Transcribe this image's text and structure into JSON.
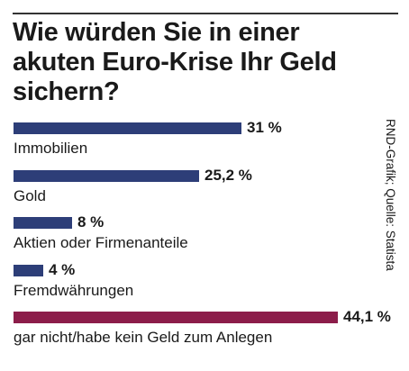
{
  "chart_data": {
    "type": "bar",
    "orientation": "horizontal",
    "title": "Wie würden Sie in einer akuten Euro-Krise Ihr Geld sichern?",
    "source": "RND-Grafik; Quelle: Statista",
    "categories": [
      "Immobilien",
      "Gold",
      "Aktien oder Firmenanteile",
      "Fremdwährungen",
      "gar nicht/habe kein Geld zum Anlegen"
    ],
    "values": [
      31,
      25.2,
      8,
      4,
      44.1
    ],
    "value_labels": [
      "31 %",
      "25,2 %",
      "8 %",
      "4 %",
      "44,1 %"
    ],
    "bar_colors": [
      "#2d3e78",
      "#2d3e78",
      "#2d3e78",
      "#2d3e78",
      "#8c1d4a"
    ],
    "grid": false,
    "legend": "none"
  }
}
